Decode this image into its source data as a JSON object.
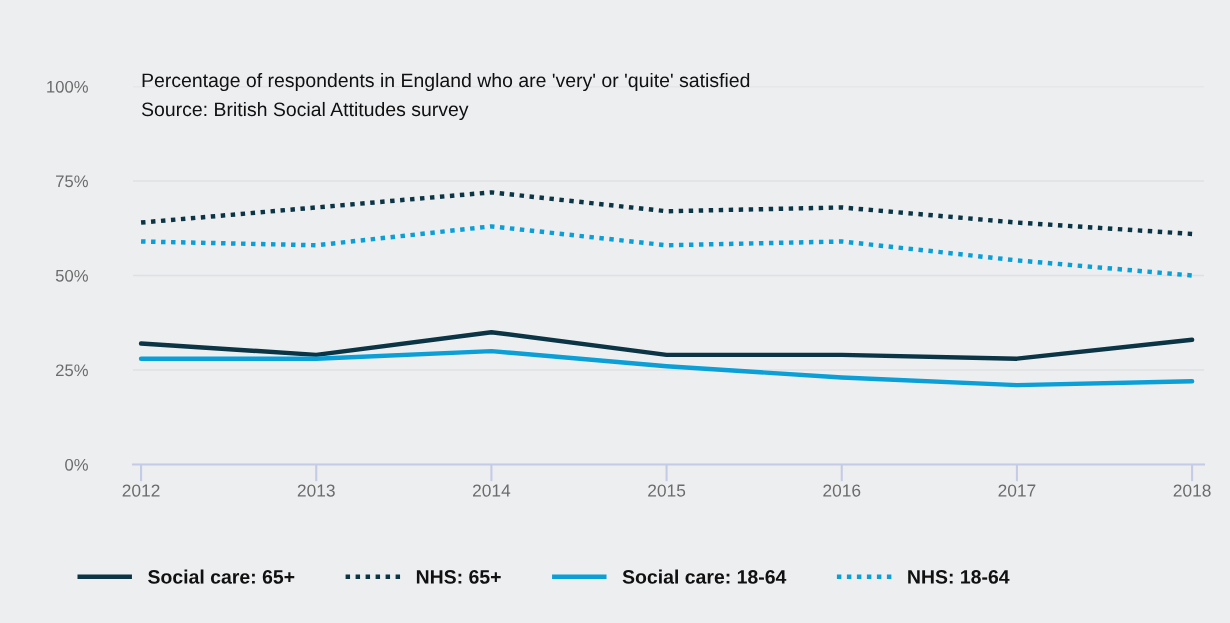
{
  "chart_data": {
    "type": "line",
    "title": "Percentage of respondents in England who are 'very' or 'quite' satisfied",
    "annotations": [
      "Source: British Social Attitudes survey"
    ],
    "categories": [
      "2012",
      "2013",
      "2014",
      "2015",
      "2016",
      "2017",
      "2018"
    ],
    "series": [
      {
        "name": "Social care: 65+",
        "color": "#0b3545",
        "line_style": "solid",
        "values": [
          32,
          29,
          35,
          29,
          29,
          28,
          33
        ]
      },
      {
        "name": "NHS: 65+",
        "color": "#0b3545",
        "line_style": "dotted",
        "values": [
          64,
          68,
          72,
          67,
          68,
          64,
          61
        ]
      },
      {
        "name": "Social care: 18-64",
        "color": "#0a9fd6",
        "line_style": "solid",
        "values": [
          28,
          28,
          30,
          26,
          23,
          21,
          22
        ]
      },
      {
        "name": "NHS: 18-64",
        "color": "#0a9fd6",
        "line_style": "dotted",
        "values": [
          59,
          58,
          63,
          58,
          59,
          54,
          50
        ]
      }
    ],
    "ylim": [
      0,
      100
    ],
    "yticks": [
      {
        "value": 0,
        "label": "0%"
      },
      {
        "value": 25,
        "label": "25%"
      },
      {
        "value": 50,
        "label": "50%"
      },
      {
        "value": 75,
        "label": "75%"
      },
      {
        "value": 100,
        "label": "100%"
      }
    ],
    "grid": "y",
    "legend": "bottom"
  }
}
